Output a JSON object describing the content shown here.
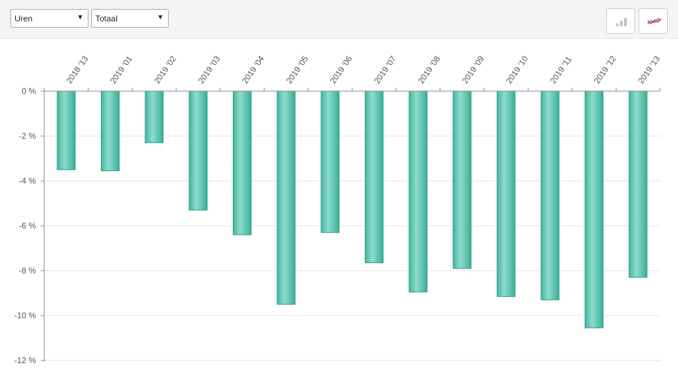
{
  "toolbar": {
    "metric_select": {
      "value": "Uren",
      "arrow": "▼"
    },
    "scope_select": {
      "value": "Totaal",
      "arrow": "▼"
    },
    "bar_chart_button": {
      "icon": "bar-chart-icon"
    },
    "line_chart_button": {
      "icon": "line-chart-icon"
    }
  },
  "colors": {
    "bar_fill_light": "#7fd6c6",
    "bar_fill_dark": "#3fb29c",
    "bar_stroke": "#2e9a86",
    "grid": "#e3e3e3",
    "axis": "#888888"
  },
  "chart_data": {
    "type": "bar",
    "title": "",
    "xlabel": "",
    "ylabel": "",
    "categories": [
      "2018 '13",
      "2019 '01",
      "2019 '02",
      "2019 '03",
      "2019 '04",
      "2019 '05",
      "2019 '06",
      "2019 '07",
      "2019 '08",
      "2019 '09",
      "2019 '10",
      "2019 '11",
      "2019 '12",
      "2019 '13"
    ],
    "values": [
      -3.5,
      -3.55,
      -2.3,
      -5.3,
      -6.4,
      -9.5,
      -6.3,
      -7.65,
      -8.95,
      -7.9,
      -9.15,
      -9.3,
      -10.55,
      -8.3
    ],
    "ylim": [
      -12,
      0
    ],
    "yticks": [
      0,
      -2,
      -4,
      -6,
      -8,
      -10,
      -12
    ],
    "ytick_labels": [
      "0 %",
      "-2 %",
      "-4 %",
      "-6 %",
      "-8 %",
      "-10 %",
      "-12 %"
    ],
    "x_axis_position": "top",
    "grid": true,
    "legend": "none"
  }
}
